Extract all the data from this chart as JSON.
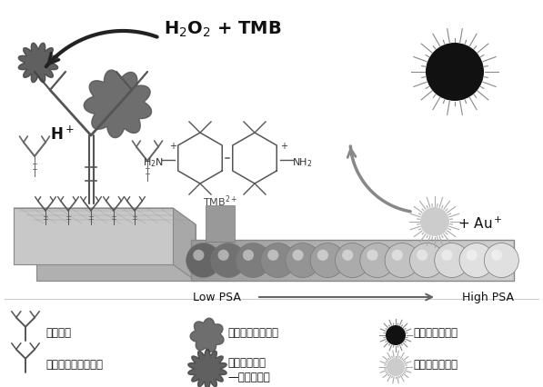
{
  "bg_color": "#ffffff",
  "h2o2_tmb_text": "H$_2$O$_2$ + TMB",
  "h_plus_text": "H$^+$",
  "tmb2plus_text": "TMB$^{2+}$",
  "au_plus_text": "+ Au$^+$",
  "low_psa_text": "Low PSA",
  "high_psa_text": "High PSA",
  "legend_row1": [
    "捕获抗体",
    "前列腺特异性抗原",
    "纳米金被氧化前"
  ],
  "legend_row2": [
    "生物素化的检测抗体",
    "辣根过氧化酶\n—链霉亲和素",
    "纳米金被氧化后"
  ],
  "dark": "#1a1a1a",
  "mid_gray": "#666666",
  "light_gray": "#aaaaaa"
}
